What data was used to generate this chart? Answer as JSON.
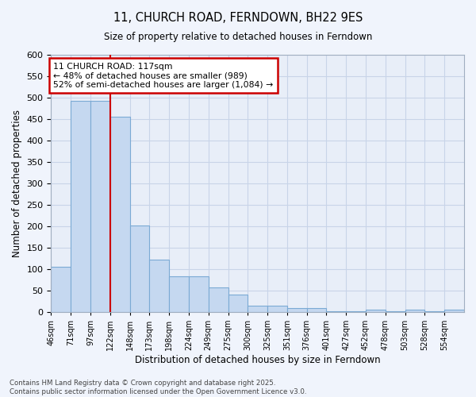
{
  "title": "11, CHURCH ROAD, FERNDOWN, BH22 9ES",
  "subtitle": "Size of property relative to detached houses in Ferndown",
  "xlabel": "Distribution of detached houses by size in Ferndown",
  "ylabel": "Number of detached properties",
  "categories": [
    "46sqm",
    "71sqm",
    "97sqm",
    "122sqm",
    "148sqm",
    "173sqm",
    "198sqm",
    "224sqm",
    "249sqm",
    "275sqm",
    "300sqm",
    "325sqm",
    "351sqm",
    "376sqm",
    "401sqm",
    "427sqm",
    "452sqm",
    "478sqm",
    "503sqm",
    "528sqm",
    "554sqm"
  ],
  "bar_heights": [
    105,
    492,
    492,
    455,
    202,
    123,
    83,
    83,
    57,
    40,
    15,
    15,
    10,
    10,
    1,
    1,
    6,
    1,
    6,
    1,
    6
  ],
  "property_line_x": 3,
  "annotation_text": "11 CHURCH ROAD: 117sqm\n← 48% of detached houses are smaller (989)\n52% of semi-detached houses are larger (1,084) →",
  "bar_color": "#c5d8f0",
  "bar_edgecolor": "#7baad4",
  "line_color": "#cc0000",
  "annotation_box_edgecolor": "#cc0000",
  "plot_bg_color": "#e8eef8",
  "fig_bg_color": "#f0f4fc",
  "grid_color": "#c8d4e8",
  "footer": "Contains HM Land Registry data © Crown copyright and database right 2025.\nContains public sector information licensed under the Open Government Licence v3.0.",
  "ylim": [
    0,
    600
  ],
  "yticks": [
    0,
    50,
    100,
    150,
    200,
    250,
    300,
    350,
    400,
    450,
    500,
    550,
    600
  ],
  "figsize": [
    6.0,
    5.0
  ],
  "dpi": 100
}
